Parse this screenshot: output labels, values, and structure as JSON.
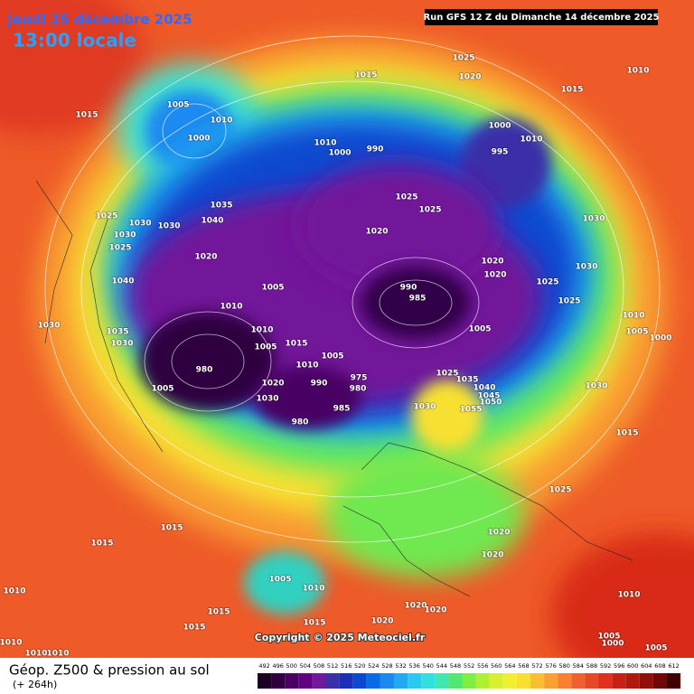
{
  "header": {
    "date": "Jeudi 25 décembre 2025",
    "time": "13:00 locale",
    "run": "Run GFS 12 Z du Dimanche 14 décembre 2025"
  },
  "map": {
    "pressure_labels": [
      "1015",
      "1025",
      "1020",
      "1010",
      "1015",
      "1015",
      "1005",
      "1010",
      "1000",
      "1000",
      "1010",
      "995",
      "1010",
      "1000",
      "990",
      "1025",
      "1025",
      "1035",
      "1040",
      "1025",
      "1030",
      "1030",
      "1030",
      "1025",
      "1020",
      "1020",
      "1030",
      "1020",
      "1020",
      "1030",
      "1025",
      "1025",
      "1040",
      "1005",
      "990",
      "985",
      "1010",
      "1010",
      "1005",
      "1000",
      "1030",
      "1035",
      "1030",
      "1010",
      "1005",
      "1015",
      "1005",
      "1010",
      "1005",
      "975",
      "980",
      "990",
      "980",
      "1025",
      "1035",
      "1040",
      "1045",
      "1050",
      "1030",
      "1030",
      "1055",
      "985",
      "1020",
      "1030",
      "980",
      "1005",
      "1015",
      "1025",
      "1015",
      "1015",
      "1020",
      "1020",
      "1005",
      "1010",
      "1010",
      "1015",
      "1020",
      "1020",
      "1015",
      "1020",
      "1015",
      "1010",
      "1005",
      "1010",
      "1010",
      "1010",
      "1005",
      "1000"
    ],
    "copyright": "Copyright © 2025 Meteociel.fr"
  },
  "footer": {
    "title": "Géop. Z500 & pression au sol",
    "lead": "(+ 264h)"
  },
  "legend": {
    "levels": [
      492,
      496,
      500,
      504,
      508,
      512,
      516,
      520,
      524,
      528,
      532,
      536,
      540,
      544,
      548,
      552,
      556,
      560,
      564,
      568,
      572,
      576,
      580,
      584,
      588,
      592,
      596,
      600,
      604,
      608,
      612
    ],
    "colors": [
      "#1a0022",
      "#2e0040",
      "#4a0063",
      "#600080",
      "#72189a",
      "#3a2fa8",
      "#1c2fb8",
      "#0a4ad0",
      "#0a6ae8",
      "#1a8af0",
      "#22aaf0",
      "#2acaf0",
      "#30e0e0",
      "#40e8b0",
      "#50e870",
      "#80ee40",
      "#b0f030",
      "#d8f030",
      "#f0f030",
      "#f8e030",
      "#f8c030",
      "#f8a030",
      "#f88030",
      "#f06030",
      "#e84828",
      "#e03020",
      "#c82018",
      "#b01810",
      "#901008",
      "#700808",
      "#400000"
    ]
  }
}
